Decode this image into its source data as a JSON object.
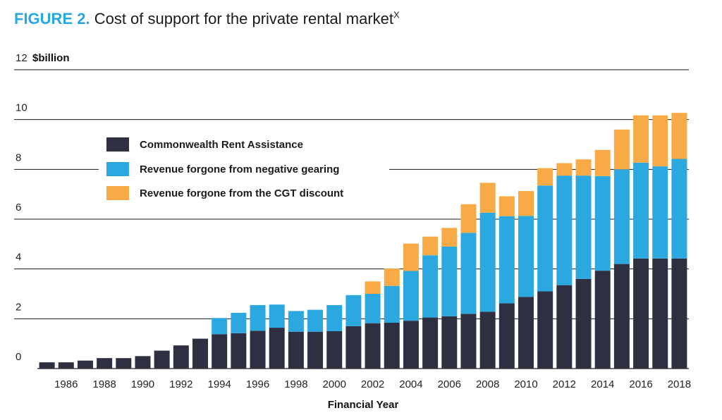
{
  "figure": {
    "label": "FIGURE 2.",
    "title": "Cost of support for the private rental market",
    "superscript": "X"
  },
  "chart_data": {
    "type": "bar",
    "stacked": true,
    "title": "Cost of support for the private rental market",
    "ylabel": "$billion",
    "xlabel": "Financial Year",
    "ylim": [
      0,
      12
    ],
    "yticks": [
      0,
      2,
      4,
      6,
      8,
      10,
      12
    ],
    "grid": "horizontal",
    "legend_position": "top-left",
    "categories": [
      1985,
      1986,
      1987,
      1988,
      1989,
      1990,
      1991,
      1992,
      1993,
      1994,
      1995,
      1996,
      1997,
      1998,
      1999,
      2000,
      2001,
      2002,
      2003,
      2004,
      2005,
      2006,
      2007,
      2008,
      2009,
      2010,
      2011,
      2012,
      2013,
      2014,
      2015,
      2016,
      2017,
      2018
    ],
    "xtick_labels": [
      "",
      "1986",
      "",
      "1988",
      "",
      "1990",
      "",
      "1992",
      "",
      "1994",
      "",
      "1996",
      "",
      "1998",
      "",
      "2000",
      "",
      "2002",
      "",
      "2004",
      "",
      "2006",
      "",
      "2008",
      "",
      "2010",
      "",
      "2012",
      "",
      "2014",
      "",
      "2016",
      "",
      "2018"
    ],
    "series": [
      {
        "name": "Commonwealth Rent Assistance",
        "color": "#2e3042",
        "values": [
          0.25,
          0.25,
          0.32,
          0.42,
          0.42,
          0.5,
          0.72,
          0.93,
          1.2,
          1.38,
          1.42,
          1.52,
          1.64,
          1.48,
          1.48,
          1.5,
          1.7,
          1.82,
          1.84,
          1.92,
          2.05,
          2.1,
          2.2,
          2.28,
          2.62,
          2.88,
          3.1,
          3.35,
          3.6,
          3.93,
          4.2,
          4.42,
          4.42,
          4.42
        ]
      },
      {
        "name": "Revenue forgone from negative gearing",
        "color": "#2ba8e0",
        "values": [
          0,
          0,
          0,
          0,
          0,
          0,
          0,
          0,
          0,
          0.65,
          0.82,
          1.03,
          0.93,
          0.83,
          0.88,
          1.05,
          1.25,
          1.18,
          1.48,
          2.0,
          2.5,
          2.8,
          3.25,
          3.98,
          3.5,
          3.25,
          4.25,
          4.4,
          4.15,
          3.8,
          3.8,
          3.85,
          3.7,
          4.0
        ]
      },
      {
        "name": "Revenue forgone from the CGT discount",
        "color": "#f7aa45",
        "values": [
          0,
          0,
          0,
          0,
          0,
          0,
          0,
          0,
          0,
          0,
          0,
          0,
          0,
          0,
          0,
          0,
          0,
          0.5,
          0.7,
          1.1,
          0.75,
          0.75,
          1.15,
          1.2,
          0.8,
          1.0,
          0.7,
          0.5,
          0.65,
          1.05,
          1.6,
          1.9,
          2.05,
          1.85
        ]
      }
    ]
  }
}
